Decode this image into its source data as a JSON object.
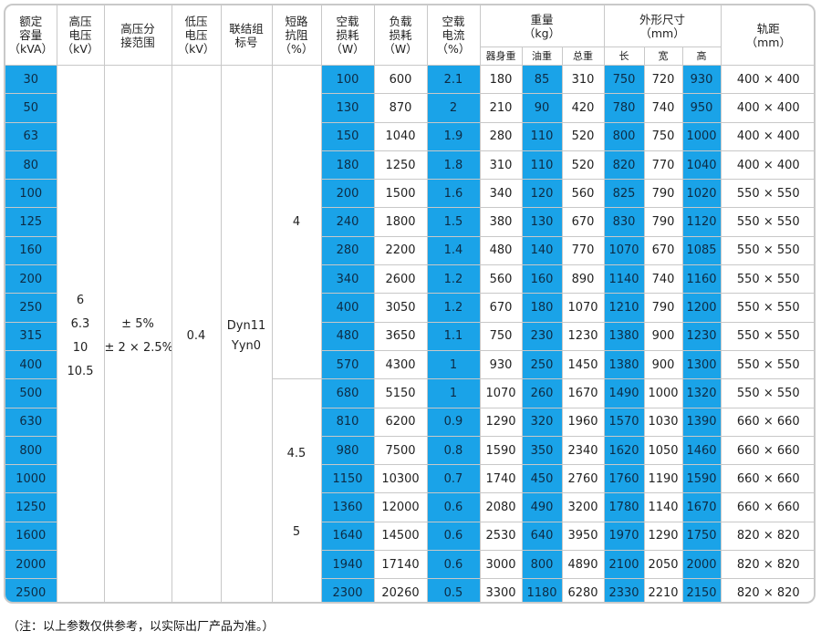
{
  "headers": {
    "rated_capacity": "额定\n容量\n（kVA）",
    "hv_voltage": "高压\n电压\n（kV）",
    "hv_tap_range": "高压分\n接范围",
    "lv_voltage": "低压\n电压\n（kV）",
    "vector_group": "联结组\n标号",
    "impedance": "短路\n抗阻\n（%）",
    "no_load_loss": "空载\n损耗\n（W）",
    "load_loss": "负载\n损耗\n（W）",
    "no_load_current": "空载\n电流\n（%）",
    "weight": "重量\n（kg）",
    "weight_body": "器身重",
    "weight_oil": "油重",
    "weight_total": "总重",
    "dimensions": "外形尺寸\n（mm）",
    "dim_length": "长",
    "dim_width": "宽",
    "dim_height": "高",
    "track_gauge": "轨距\n（mm）"
  },
  "merged": {
    "hv_voltage_values": [
      "6",
      "6.3",
      "10",
      "10.5"
    ],
    "hv_tap_values": [
      "± 5%",
      "± 2 × 2.5%"
    ],
    "lv_voltage": "0.4",
    "vector_group_values": [
      "Dyn11",
      "Yyn0"
    ],
    "impedance_a": "4",
    "impedance_b": [
      "4.5",
      "5"
    ]
  },
  "rows": [
    {
      "cap": "30",
      "nl": "100",
      "ll": "600",
      "nc": "2.1",
      "wb": "180",
      "wo": "85",
      "wt": "310",
      "dl": "750",
      "dw": "720",
      "dh": "930",
      "tg": "400 × 400"
    },
    {
      "cap": "50",
      "nl": "130",
      "ll": "870",
      "nc": "2",
      "wb": "210",
      "wo": "90",
      "wt": "420",
      "dl": "780",
      "dw": "740",
      "dh": "950",
      "tg": "400 × 400"
    },
    {
      "cap": "63",
      "nl": "150",
      "ll": "1040",
      "nc": "1.9",
      "wb": "280",
      "wo": "110",
      "wt": "520",
      "dl": "800",
      "dw": "750",
      "dh": "1000",
      "tg": "400 × 400"
    },
    {
      "cap": "80",
      "nl": "180",
      "ll": "1250",
      "nc": "1.8",
      "wb": "310",
      "wo": "110",
      "wt": "520",
      "dl": "820",
      "dw": "770",
      "dh": "1040",
      "tg": "400 × 400"
    },
    {
      "cap": "100",
      "nl": "200",
      "ll": "1500",
      "nc": "1.6",
      "wb": "340",
      "wo": "120",
      "wt": "560",
      "dl": "825",
      "dw": "790",
      "dh": "1020",
      "tg": "550 × 550"
    },
    {
      "cap": "125",
      "nl": "240",
      "ll": "1800",
      "nc": "1.5",
      "wb": "380",
      "wo": "130",
      "wt": "670",
      "dl": "830",
      "dw": "790",
      "dh": "1120",
      "tg": "550 × 550"
    },
    {
      "cap": "160",
      "nl": "280",
      "ll": "2200",
      "nc": "1.4",
      "wb": "480",
      "wo": "140",
      "wt": "770",
      "dl": "1070",
      "dw": "670",
      "dh": "1085",
      "tg": "550 × 550"
    },
    {
      "cap": "200",
      "nl": "340",
      "ll": "2600",
      "nc": "1.2",
      "wb": "560",
      "wo": "160",
      "wt": "890",
      "dl": "1140",
      "dw": "740",
      "dh": "1160",
      "tg": "550 × 550"
    },
    {
      "cap": "250",
      "nl": "400",
      "ll": "3050",
      "nc": "1.2",
      "wb": "670",
      "wo": "180",
      "wt": "1070",
      "dl": "1210",
      "dw": "790",
      "dh": "1200",
      "tg": "550 × 550"
    },
    {
      "cap": "315",
      "nl": "480",
      "ll": "3650",
      "nc": "1.1",
      "wb": "750",
      "wo": "230",
      "wt": "1230",
      "dl": "1380",
      "dw": "900",
      "dh": "1230",
      "tg": "550 × 550"
    },
    {
      "cap": "400",
      "nl": "570",
      "ll": "4300",
      "nc": "1",
      "wb": "930",
      "wo": "250",
      "wt": "1450",
      "dl": "1380",
      "dw": "900",
      "dh": "1300",
      "tg": "550 × 550"
    },
    {
      "cap": "500",
      "nl": "680",
      "ll": "5150",
      "nc": "1",
      "wb": "1070",
      "wo": "260",
      "wt": "1670",
      "dl": "1490",
      "dw": "1000",
      "dh": "1320",
      "tg": "550 × 550"
    },
    {
      "cap": "630",
      "nl": "810",
      "ll": "6200",
      "nc": "0.9",
      "wb": "1290",
      "wo": "320",
      "wt": "1960",
      "dl": "1570",
      "dw": "1030",
      "dh": "1390",
      "tg": "660 × 660"
    },
    {
      "cap": "800",
      "nl": "980",
      "ll": "7500",
      "nc": "0.8",
      "wb": "1590",
      "wo": "350",
      "wt": "2340",
      "dl": "1620",
      "dw": "1050",
      "dh": "1460",
      "tg": "660 × 660"
    },
    {
      "cap": "1000",
      "nl": "1150",
      "ll": "10300",
      "nc": "0.7",
      "wb": "1740",
      "wo": "450",
      "wt": "2760",
      "dl": "1760",
      "dw": "1190",
      "dh": "1590",
      "tg": "660 × 660"
    },
    {
      "cap": "1250",
      "nl": "1360",
      "ll": "12000",
      "nc": "0.6",
      "wb": "2080",
      "wo": "490",
      "wt": "3200",
      "dl": "1780",
      "dw": "1140",
      "dh": "1670",
      "tg": "660 × 660"
    },
    {
      "cap": "1600",
      "nl": "1640",
      "ll": "14500",
      "nc": "0.6",
      "wb": "2530",
      "wo": "640",
      "wt": "3950",
      "dl": "1970",
      "dw": "1290",
      "dh": "1750",
      "tg": "820 × 820"
    },
    {
      "cap": "2000",
      "nl": "1940",
      "ll": "17140",
      "nc": "0.6",
      "wb": "3000",
      "wo": "800",
      "wt": "4890",
      "dl": "2100",
      "dw": "2050",
      "dh": "2000",
      "tg": "820 × 820"
    },
    {
      "cap": "2500",
      "nl": "2300",
      "ll": "20260",
      "nc": "0.5",
      "wb": "3300",
      "wo": "1180",
      "wt": "6280",
      "dl": "2330",
      "dw": "2210",
      "dh": "2150",
      "tg": "820 × 820"
    }
  ],
  "note": "（注：以上参数仅供参考，以实际出厂产品为准。）",
  "colors": {
    "highlight": "#1aa3e8",
    "border": "#c8c8c8"
  }
}
